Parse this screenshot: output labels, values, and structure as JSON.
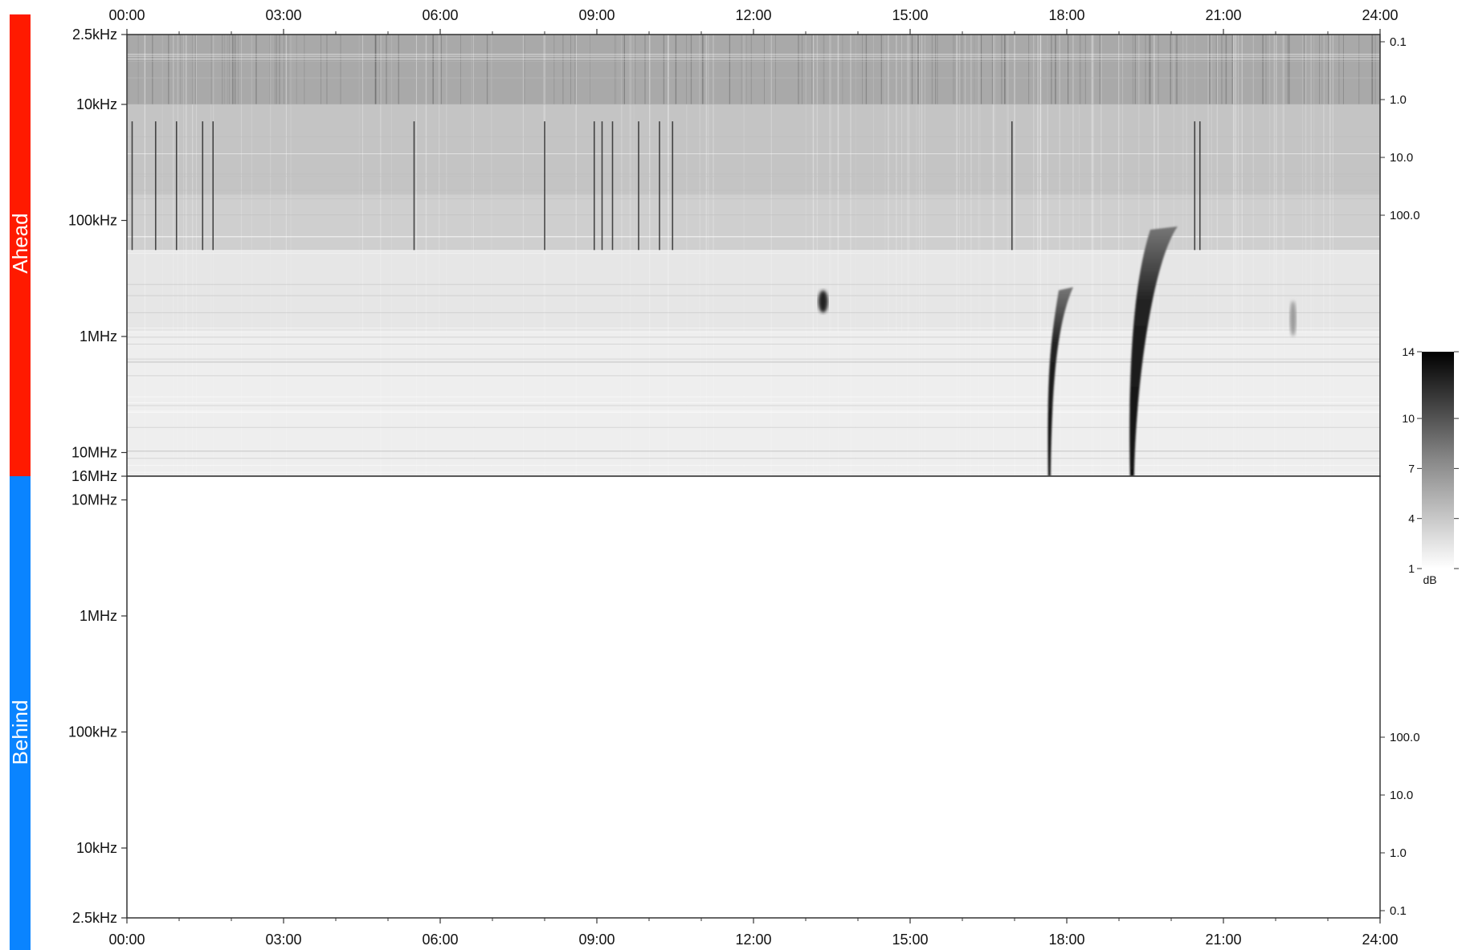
{
  "sides": {
    "ahead_label": "Ahead",
    "behind_label": "Behind",
    "ahead_color": "#ff1a00",
    "behind_color": "#0a84ff"
  },
  "colorbar": {
    "unit": "dB",
    "ticks": [
      "1",
      "4",
      "7",
      "10",
      "14"
    ],
    "range": [
      1,
      14
    ]
  },
  "chart_data": [
    {
      "type": "heatmap",
      "panel": "ahead",
      "title": "",
      "x_ticks": [
        "00:00",
        "03:00",
        "06:00",
        "09:00",
        "12:00",
        "15:00",
        "18:00",
        "21:00",
        "24:00"
      ],
      "x_range_hours": [
        0,
        24
      ],
      "y_scale": "log",
      "y_range_hz": [
        2500,
        16000000
      ],
      "y_ticks": [
        "2.5kHz",
        "10kHz",
        "100kHz",
        "1MHz",
        "10MHz",
        "16MHz"
      ],
      "right_axis_ticks": [
        "0.1",
        "1.0",
        "10.0",
        "100.0"
      ],
      "colormap": "grayscale (white = low dB, black = high dB)",
      "grid": false,
      "features": [
        {
          "kind": "type III radio burst",
          "time": "17:40-18:00",
          "freq_range": "16MHz to ~400kHz",
          "intensity": "strong"
        },
        {
          "kind": "type III radio burst",
          "time": "19:15-20:00",
          "freq_range": "16MHz to ~120kHz",
          "intensity": "very strong"
        },
        {
          "kind": "compact emission",
          "time": "13:20",
          "freq_range": "~500kHz",
          "intensity": "moderate"
        },
        {
          "kind": "faint burst",
          "time": "22:20",
          "freq_range": "~700kHz",
          "intensity": "weak"
        }
      ]
    },
    {
      "type": "heatmap",
      "panel": "behind",
      "title": "",
      "x_ticks": [
        "00:00",
        "03:00",
        "06:00",
        "09:00",
        "12:00",
        "15:00",
        "18:00",
        "21:00",
        "24:00"
      ],
      "x_range_hours": [
        0,
        24
      ],
      "y_scale": "log",
      "y_range_hz": [
        2500,
        16000000
      ],
      "y_ticks": [
        "10MHz",
        "1MHz",
        "100kHz",
        "10kHz",
        "2.5kHz"
      ],
      "right_axis_ticks": [
        "100.0",
        "10.0",
        "1.0",
        "0.1"
      ],
      "data_present": false
    }
  ]
}
